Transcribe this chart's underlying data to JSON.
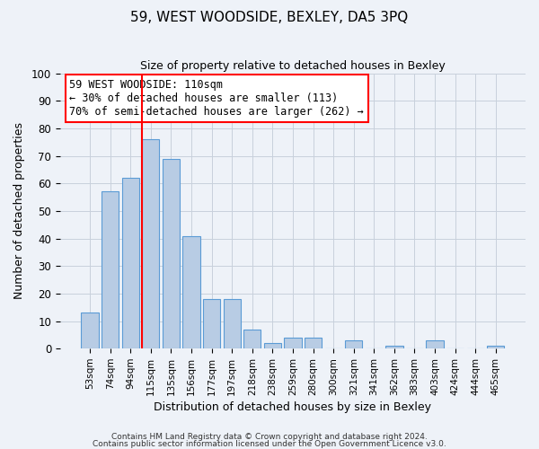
{
  "title": "59, WEST WOODSIDE, BEXLEY, DA5 3PQ",
  "subtitle": "Size of property relative to detached houses in Bexley",
  "xlabel": "Distribution of detached houses by size in Bexley",
  "ylabel": "Number of detached properties",
  "bar_labels": [
    "53sqm",
    "74sqm",
    "94sqm",
    "115sqm",
    "135sqm",
    "156sqm",
    "177sqm",
    "197sqm",
    "218sqm",
    "238sqm",
    "259sqm",
    "280sqm",
    "300sqm",
    "321sqm",
    "341sqm",
    "362sqm",
    "383sqm",
    "403sqm",
    "424sqm",
    "444sqm",
    "465sqm"
  ],
  "bar_values": [
    13,
    57,
    62,
    76,
    69,
    41,
    18,
    18,
    7,
    2,
    4,
    4,
    0,
    3,
    0,
    1,
    0,
    3,
    0,
    0,
    1
  ],
  "bar_color": "#b8cce4",
  "bar_edge_color": "#5b9bd5",
  "vline_x_index": 3,
  "vline_color": "red",
  "ylim": [
    0,
    100
  ],
  "yticks": [
    0,
    10,
    20,
    30,
    40,
    50,
    60,
    70,
    80,
    90,
    100
  ],
  "annotation_box_text": "59 WEST WOODSIDE: 110sqm\n← 30% of detached houses are smaller (113)\n70% of semi-detached houses are larger (262) →",
  "footer_line1": "Contains HM Land Registry data © Crown copyright and database right 2024.",
  "footer_line2": "Contains public sector information licensed under the Open Government Licence v3.0.",
  "bg_color": "#eef2f8",
  "grid_color": "#c8d0dc"
}
